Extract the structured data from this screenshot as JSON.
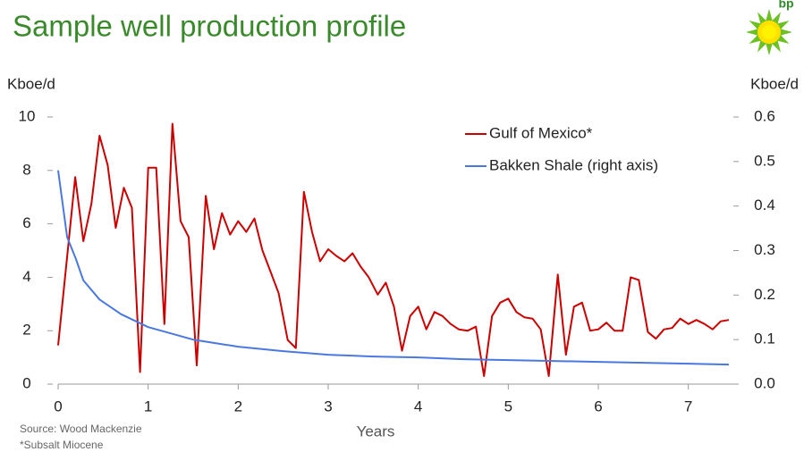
{
  "chart_data": {
    "type": "line",
    "title": "Sample well production profile",
    "logo_text": "bp",
    "ylabel": "Kboe/d",
    "y2label": "Kboe/d",
    "xlabel": "Years",
    "source": "Source: Wood Mackenzie",
    "note": "*Subsalt Miocene",
    "xlim": [
      0,
      7.5
    ],
    "xticks": [
      0,
      1,
      2,
      3,
      4,
      5,
      6,
      7
    ],
    "ylim": [
      0,
      10
    ],
    "yticks": [
      0,
      2,
      4,
      6,
      8,
      10
    ],
    "y2lim": [
      0,
      0.6
    ],
    "y2ticks": [
      {
        "value": 0,
        "label": "0.0"
      },
      0.1,
      0.2,
      0.3,
      0.4,
      0.5,
      0.6
    ],
    "legend": "upper right",
    "series": [
      {
        "name": "Gulf of Mexico*",
        "color": "#cc0000",
        "x": [
          0,
          0.19,
          0.28,
          0.37,
          0.46,
          0.55,
          0.64,
          0.73,
          0.82,
          0.91,
          1.0,
          1.09,
          1.18,
          1.27,
          1.36,
          1.45,
          1.54,
          1.64,
          1.73,
          1.82,
          1.91,
          2.0,
          2.09,
          2.18,
          2.27,
          2.36,
          2.45,
          2.55,
          2.64,
          2.73,
          2.82,
          2.91,
          3.0,
          3.09,
          3.18,
          3.27,
          3.36,
          3.45,
          3.55,
          3.64,
          3.73,
          3.82,
          3.91,
          4.0,
          4.09,
          4.18,
          4.27,
          4.36,
          4.45,
          4.55,
          4.64,
          4.73,
          4.82,
          4.91,
          5.0,
          5.09,
          5.18,
          5.27,
          5.36,
          5.45,
          5.55,
          5.64,
          5.73,
          5.82,
          5.91,
          6.0,
          6.09,
          6.18,
          6.27,
          6.36,
          6.45,
          6.55,
          6.64,
          6.73,
          6.82,
          6.91,
          7.0,
          7.09,
          7.18,
          7.27,
          7.36,
          7.45
        ],
        "values": [
          1.45,
          7.75,
          5.35,
          6.75,
          9.3,
          8.2,
          5.85,
          7.35,
          6.6,
          0.45,
          8.1,
          8.1,
          2.25,
          9.75,
          6.1,
          5.5,
          0.7,
          7.05,
          5.05,
          6.4,
          5.6,
          6.1,
          5.7,
          6.2,
          5.0,
          4.2,
          3.4,
          1.65,
          1.35,
          7.2,
          5.7,
          4.6,
          5.05,
          4.8,
          4.6,
          4.9,
          4.4,
          4.0,
          3.35,
          3.8,
          2.9,
          1.25,
          2.55,
          2.9,
          2.05,
          2.7,
          2.55,
          2.25,
          2.05,
          2.0,
          2.15,
          0.3,
          2.55,
          3.05,
          3.2,
          2.7,
          2.5,
          2.45,
          2.05,
          0.3,
          4.1,
          1.1,
          2.9,
          3.05,
          2.0,
          2.05,
          2.3,
          2.0,
          2.0,
          4.0,
          3.9,
          1.95,
          1.7,
          2.05,
          2.1,
          2.45,
          2.25,
          2.4,
          2.25,
          2.05,
          2.35,
          2.4
        ]
      },
      {
        "name": "Bakken Shale (right axis)",
        "color": "#4a78e0",
        "axis": "y2",
        "x": [
          0,
          0.1,
          0.2,
          0.28,
          0.46,
          0.7,
          1.0,
          1.5,
          2.0,
          2.5,
          3.0,
          3.5,
          4.0,
          4.5,
          5.0,
          5.5,
          6.0,
          6.5,
          7.0,
          7.45
        ],
        "values": [
          0.48,
          0.33,
          0.28,
          0.233,
          0.19,
          0.157,
          0.128,
          0.1,
          0.084,
          0.074,
          0.066,
          0.062,
          0.06,
          0.056,
          0.054,
          0.052,
          0.05,
          0.048,
          0.046,
          0.044
        ]
      }
    ]
  }
}
